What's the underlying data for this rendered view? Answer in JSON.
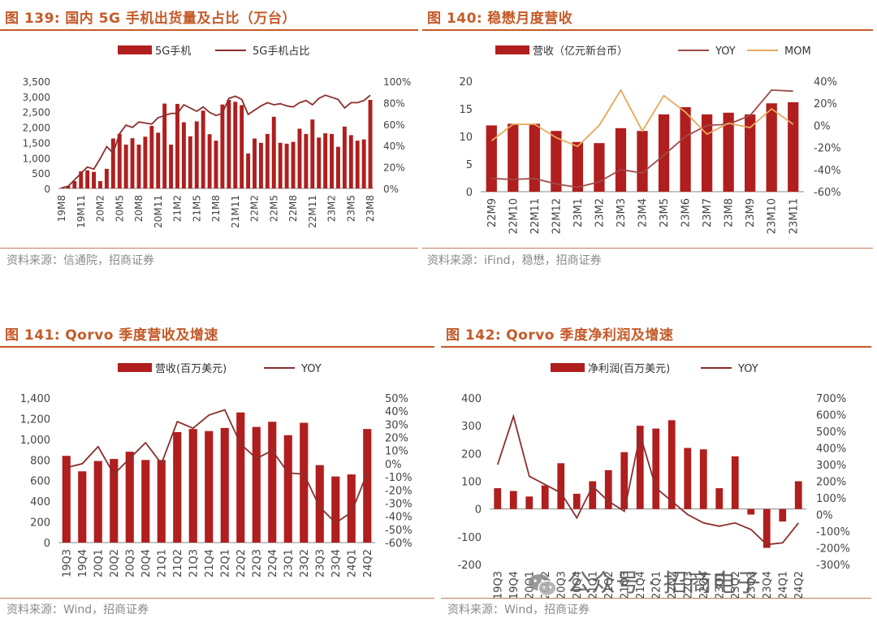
{
  "watermark": {
    "text": "公众号 · 招商电子"
  },
  "panels": [
    {
      "title_num": "图 139:",
      "title_text": "国内 5G 手机出货量及占比（万台）",
      "source": "资料来源：信通院，招商证券",
      "chart_data": {
        "type": "bar",
        "title": "国内 5G 手机出货量及占比（万台）",
        "legend": [
          "5G手机",
          "5G手机占比"
        ],
        "categories": [
          "19M8",
          "19M9",
          "19M10",
          "19M11",
          "19M12",
          "20M1",
          "20M2",
          "20M3",
          "20M4",
          "20M5",
          "20M6",
          "20M7",
          "20M8",
          "20M9",
          "20M10",
          "20M11",
          "20M12",
          "21M1",
          "21M2",
          "21M3",
          "21M4",
          "21M5",
          "21M6",
          "21M7",
          "21M8",
          "21M9",
          "21M10",
          "21M11",
          "21M12",
          "22M1",
          "22M2",
          "22M3",
          "22M4",
          "22M5",
          "22M6",
          "22M7",
          "22M8",
          "22M9",
          "22M10",
          "22M11",
          "22M12",
          "23M1",
          "23M2",
          "23M3",
          "23M4",
          "23M5",
          "23M6",
          "23M7",
          "23M8"
        ],
        "xtick_labels": [
          "19M8",
          "19M11",
          "20M2",
          "20M5",
          "20M8",
          "20M11",
          "21M2",
          "21M5",
          "21M8",
          "21M11",
          "22M2",
          "22M5",
          "22M8",
          "22M11",
          "23M2",
          "23M5",
          "23M8"
        ],
        "series": [
          {
            "name": "5G手机",
            "kind": "bar",
            "axis": "left",
            "values": [
              20,
              80,
              240,
              560,
              590,
              540,
              240,
              640,
              1630,
              1780,
              1430,
              1640,
              1430,
              1690,
              2040,
              1820,
              2770,
              1430,
              2760,
              2160,
              1700,
              2190,
              2540,
              1770,
              1560,
              2740,
              2890,
              2830,
              2720,
              1140,
              1630,
              1490,
              1780,
              2340,
              1490,
              1460,
              1520,
              1950,
              1780,
              2250,
              1660,
              1800,
              1780,
              1360,
              2020,
              1740,
              1560,
              1600,
              2890
            ]
          },
          {
            "name": "5G手机占比",
            "kind": "line",
            "axis": "right",
            "values": [
              0.5,
              2,
              8,
              14,
              20,
              18,
              28,
              39,
              33,
              51,
              59,
              57,
              62,
              61,
              60,
              66,
              68,
              70,
              70,
              78,
              75,
              72,
              76,
              71,
              68,
              70,
              84,
              86,
              83,
              69,
              73,
              77,
              80,
              78,
              79,
              77,
              76,
              80,
              82,
              78,
              84,
              87,
              85,
              83,
              75,
              80,
              80,
              82,
              87
            ]
          }
        ],
        "ylim_left": [
          0,
          3500
        ],
        "yticks_left": [
          "0",
          "500",
          "1,000",
          "1,500",
          "2,000",
          "2,500",
          "3,000",
          "3,500"
        ],
        "ylim_right": [
          0,
          100
        ],
        "yticks_right": [
          "0%",
          "20%",
          "40%",
          "60%",
          "80%",
          "100%"
        ]
      }
    },
    {
      "title_num": "图 140:",
      "title_text": "稳懋月度营收",
      "source": "资料来源：iFind，稳懋，招商证券",
      "chart_data": {
        "type": "bar",
        "title": "稳懋月度营收",
        "legend": [
          "营收（亿元新台币）",
          "YOY",
          "MOM"
        ],
        "categories": [
          "22M9",
          "22M10",
          "22M11",
          "22M12",
          "23M1",
          "23M2",
          "23M3",
          "23M4",
          "23M5",
          "23M6",
          "23M7",
          "23M8",
          "23M9",
          "23M10",
          "23M11"
        ],
        "series": [
          {
            "name": "营收（亿元新台币）",
            "kind": "bar",
            "axis": "left",
            "values": [
              12.0,
              12.3,
              12.3,
              11.0,
              9.0,
              8.8,
              11.5,
              11.0,
              14.0,
              15.3,
              14.0,
              14.3,
              14.0,
              16.0,
              16.2
            ]
          },
          {
            "name": "YOY",
            "kind": "line",
            "axis": "right",
            "color": "#a04a4a",
            "values": [
              -48,
              -49,
              -48,
              -53,
              -56,
              -51,
              -40,
              -43,
              -27,
              -10,
              0,
              1,
              9,
              32,
              31
            ]
          },
          {
            "name": "MOM",
            "kind": "line",
            "axis": "right",
            "color": "#e8a85a",
            "values": [
              -14,
              1,
              1,
              -11,
              -19,
              0,
              32,
              -5,
              27,
              12,
              -8,
              2,
              -2,
              15,
              1
            ]
          }
        ],
        "ylim_left": [
          0,
          20
        ],
        "yticks_left": [
          "0",
          "5",
          "10",
          "15",
          "20"
        ],
        "ylim_right": [
          -60,
          40
        ],
        "yticks_right": [
          "-60%",
          "-40%",
          "-20%",
          "0%",
          "20%",
          "40%"
        ]
      }
    },
    {
      "title_num": "图 141:",
      "title_text": "Qorvo 季度营收及增速",
      "source": "资料来源：Wind，招商证券",
      "chart_data": {
        "type": "bar",
        "title": "Qorvo 季度营收及增速",
        "legend": [
          "营收(百万美元)",
          "YOY"
        ],
        "categories": [
          "19Q3",
          "19Q4",
          "20Q1",
          "20Q2",
          "20Q3",
          "20Q4",
          "21Q1",
          "21Q2",
          "21Q3",
          "21Q4",
          "22Q1",
          "22Q2",
          "22Q3",
          "22Q4",
          "23Q1",
          "23Q2",
          "23Q3",
          "23Q4",
          "24Q1",
          "24Q2"
        ],
        "series": [
          {
            "name": "营收(百万美元)",
            "kind": "bar",
            "axis": "left",
            "values": [
              840,
              690,
              790,
              810,
              880,
              800,
              800,
              1070,
              1100,
              1080,
              1110,
              1260,
              1120,
              1170,
              1040,
              1160,
              750,
              640,
              660,
              1100
            ]
          },
          {
            "name": "YOY",
            "kind": "line",
            "axis": "right",
            "values": [
              -3,
              0,
              13,
              -8,
              4,
              16,
              0,
              32,
              27,
              37,
              41,
              15,
              4,
              10,
              -7,
              -8,
              -33,
              -45,
              -37,
              -7
            ]
          }
        ],
        "ylim_left": [
          0,
          1400
        ],
        "yticks_left": [
          "0",
          "200",
          "400",
          "600",
          "800",
          "1,000",
          "1,200",
          "1,400"
        ],
        "ylim_right": [
          -60,
          50
        ],
        "yticks_right": [
          "-60%",
          "-50%",
          "-40%",
          "-30%",
          "-20%",
          "-10%",
          "0%",
          "10%",
          "20%",
          "30%",
          "40%",
          "50%"
        ]
      }
    },
    {
      "title_num": "图 142:",
      "title_text": "Qorvo 季度净利润及增速",
      "source": "资料来源：Wind，招商证券",
      "chart_data": {
        "type": "bar",
        "title": "Qorvo 季度净利润及增速",
        "legend": [
          "净利润(百万美元)",
          "YOY"
        ],
        "categories": [
          "19Q3",
          "19Q4",
          "20Q1",
          "20Q2",
          "20Q3",
          "20Q4",
          "21Q1",
          "21Q2",
          "21Q3",
          "21Q4",
          "22Q1",
          "22Q2",
          "22Q3",
          "22Q4",
          "23Q1",
          "23Q2",
          "23Q3",
          "23Q4",
          "24Q1",
          "24Q2"
        ],
        "series": [
          {
            "name": "净利润(百万美元)",
            "kind": "bar",
            "axis": "left",
            "values": [
              75,
              65,
              45,
              85,
              165,
              55,
              100,
              140,
              205,
              300,
              290,
              320,
              220,
              215,
              75,
              190,
              -20,
              -140,
              -45,
              100
            ]
          },
          {
            "name": "YOY",
            "kind": "line",
            "axis": "right",
            "values": [
              300,
              590,
              230,
              180,
              130,
              -20,
              170,
              80,
              20,
              480,
              160,
              80,
              0,
              -50,
              -70,
              -50,
              -90,
              -180,
              -170,
              -50
            ]
          }
        ],
        "ylim_left": [
          -200,
          400
        ],
        "yticks_left": [
          "-200",
          "-100",
          "0",
          "100",
          "200",
          "300",
          "400"
        ],
        "ylim_right": [
          -300,
          700
        ],
        "yticks_right": [
          "-300%",
          "-200%",
          "-100%",
          "0%",
          "100%",
          "200%",
          "300%",
          "400%",
          "500%",
          "600%",
          "700%"
        ]
      }
    }
  ]
}
